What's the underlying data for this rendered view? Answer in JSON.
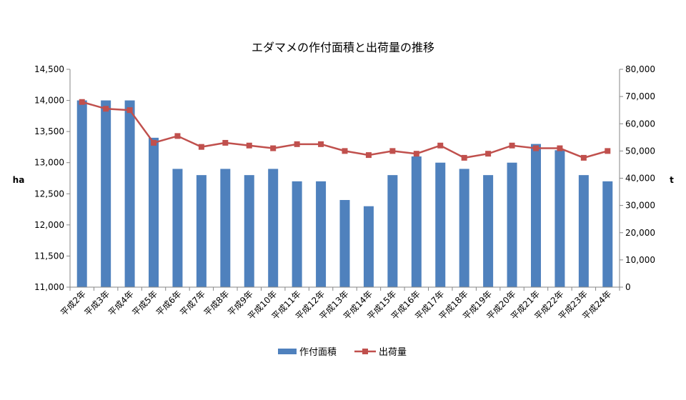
{
  "chart_data": {
    "type": "bar",
    "title": "エダマメの作付面積と出荷量の推移",
    "categories": [
      "平成2年",
      "平成3年",
      "平成4年",
      "平成5年",
      "平成6年",
      "平成7年",
      "平成8年",
      "平成9年",
      "平成10年",
      "平成11年",
      "平成12年",
      "平成13年",
      "平成14年",
      "平成15年",
      "平成16年",
      "平成17年",
      "平成18年",
      "平成19年",
      "平成20年",
      "平成21年",
      "平成22年",
      "平成23年",
      "平成24年"
    ],
    "series": [
      {
        "name": "作付面積",
        "type": "bar",
        "axis": "left",
        "color": "#4F81BD",
        "values": [
          14000,
          14000,
          14000,
          13400,
          12900,
          12800,
          12900,
          12800,
          12900,
          12700,
          12700,
          12400,
          12300,
          12800,
          13100,
          13000,
          12900,
          12800,
          13000,
          13300,
          13200,
          12800,
          12700
        ]
      },
      {
        "name": "出荷量",
        "type": "line",
        "axis": "right",
        "color": "#C0504D",
        "marker": "square",
        "values": [
          68000,
          65500,
          65000,
          53000,
          55500,
          51500,
          53000,
          52000,
          51000,
          52500,
          52500,
          50000,
          48500,
          50000,
          49000,
          52000,
          47500,
          49000,
          52000,
          51000,
          51000,
          47500,
          50000
        ]
      }
    ],
    "y_left": {
      "label": "ha",
      "lim": [
        11000,
        14500
      ],
      "ticks": [
        "11,000",
        "11,500",
        "12,000",
        "12,500",
        "13,000",
        "13,500",
        "14,000",
        "14,500"
      ]
    },
    "y_right": {
      "label": "t",
      "lim": [
        0,
        80000
      ],
      "ticks": [
        "0",
        "10,000",
        "20,000",
        "30,000",
        "40,000",
        "50,000",
        "60,000",
        "70,000",
        "80,000"
      ]
    },
    "grid": false,
    "legend": "bottom"
  }
}
